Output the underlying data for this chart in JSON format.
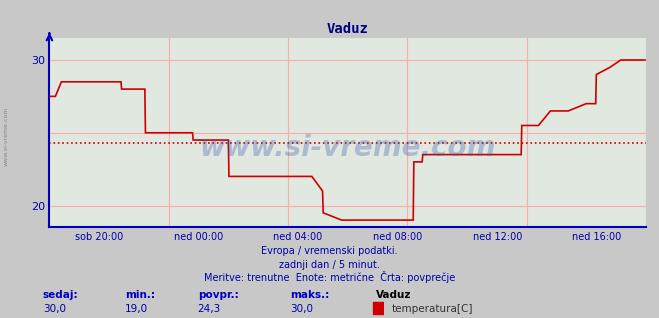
{
  "title": "Vaduz",
  "bg_color": "#c8c8c8",
  "plot_bg_color": "#e0e8e0",
  "line_color": "#cc0000",
  "avg_line_color": "#cc0000",
  "grid_color": "#ffaaaa",
  "axis_color": "#0000bb",
  "xlabel_color": "#0000aa",
  "text_color": "#0000aa",
  "ylim": [
    18.5,
    31.5
  ],
  "yticks": [
    20,
    30
  ],
  "avg_value": 24.3,
  "footer_line1": "Evropa / vremenski podatki.",
  "footer_line2": "zadnji dan / 5 minut.",
  "footer_line3": "Meritve: trenutne  Enote: metrične  Črta: povprečje",
  "label_sedaj": "sedaj:",
  "label_min": "min.:",
  "label_povpr": "povpr.:",
  "label_maks": "maks.:",
  "val_sedaj": "30,0",
  "val_min": "19,0",
  "val_povpr": "24,3",
  "val_maks": "30,0",
  "station_name": "Vaduz",
  "legend_label": "temperatura[C]",
  "watermark": "www.si-vreme.com",
  "x_tick_labels": [
    "sob 20:00",
    "ned 00:00",
    "ned 04:00",
    "ned 08:00",
    "ned 12:00",
    "ned 16:00"
  ],
  "side_label": "www.si-vreme.com",
  "time_data": [
    0.0,
    0.01,
    0.02,
    0.04,
    0.06,
    0.08,
    0.1,
    0.12,
    0.121,
    0.14,
    0.16,
    0.161,
    0.2,
    0.24,
    0.241,
    0.28,
    0.3,
    0.301,
    0.34,
    0.38,
    0.42,
    0.44,
    0.458,
    0.459,
    0.49,
    0.5,
    0.58,
    0.61,
    0.611,
    0.625,
    0.626,
    0.64,
    0.68,
    0.72,
    0.76,
    0.791,
    0.792,
    0.82,
    0.84,
    0.87,
    0.9,
    0.916,
    0.917,
    0.94,
    0.958,
    0.97,
    1.0
  ],
  "temp_data": [
    27.5,
    27.5,
    28.5,
    28.5,
    28.5,
    28.5,
    28.5,
    28.5,
    28.0,
    28.0,
    28.0,
    25.0,
    25.0,
    25.0,
    24.5,
    24.5,
    24.5,
    22.0,
    22.0,
    22.0,
    22.0,
    22.0,
    21.0,
    19.5,
    19.0,
    19.0,
    19.0,
    19.0,
    23.0,
    23.0,
    23.5,
    23.5,
    23.5,
    23.5,
    23.5,
    23.5,
    25.5,
    25.5,
    26.5,
    26.5,
    27.0,
    27.0,
    29.0,
    29.5,
    30.0,
    30.0,
    30.0
  ]
}
